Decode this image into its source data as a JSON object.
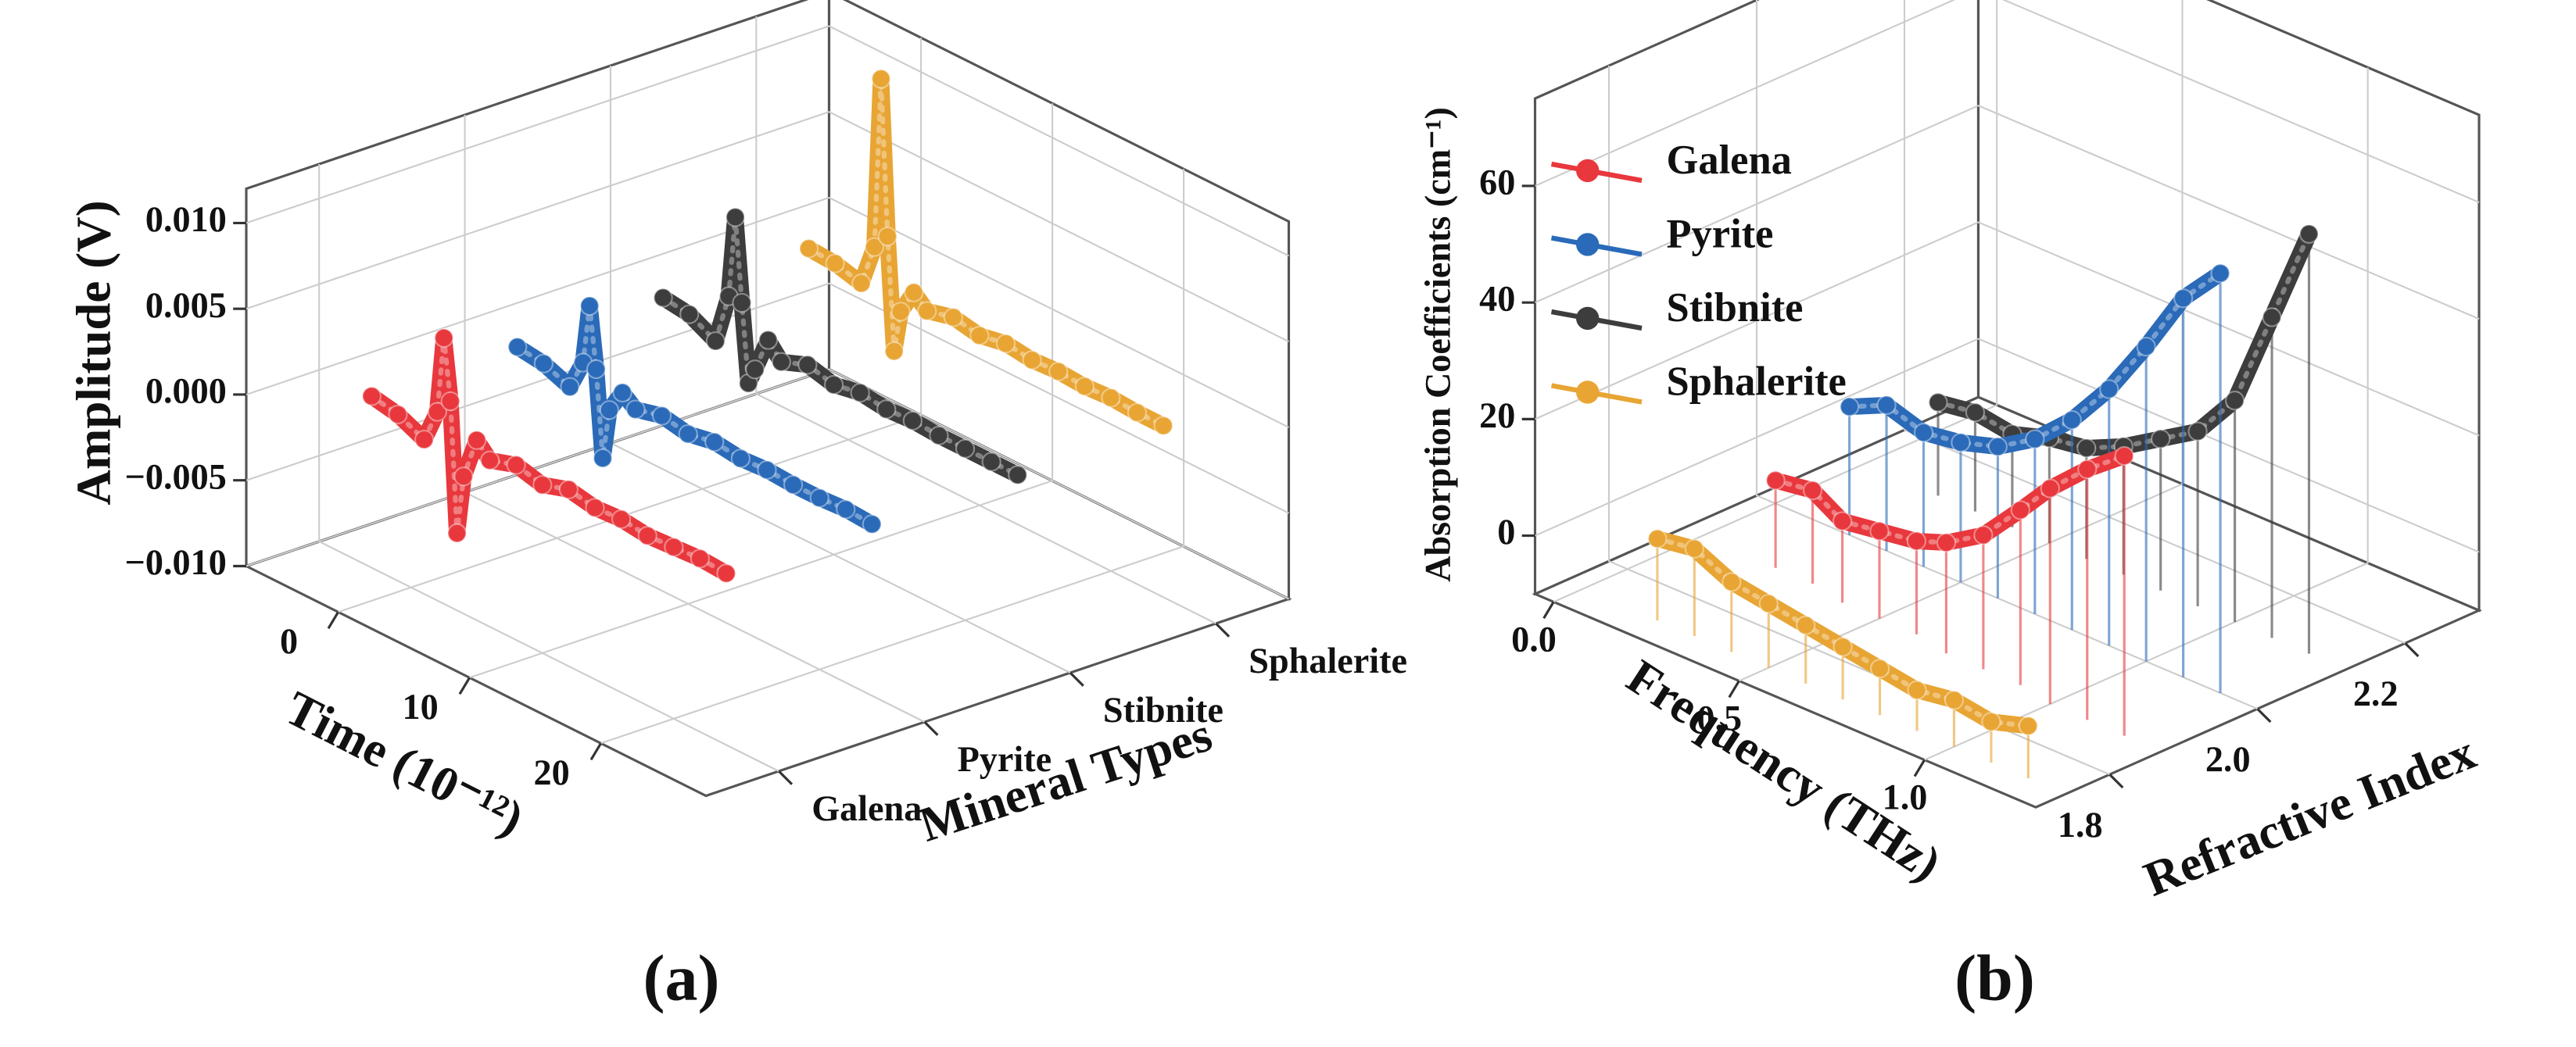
{
  "chart_data": [
    {
      "type": "line3d",
      "panel_label": "(a)",
      "x_label": "Time (10⁻¹²)",
      "y_label": "Amplitude (V)",
      "z_label": "Mineral Types",
      "xlim": [
        -7,
        28
      ],
      "xticks": [
        0,
        10,
        20
      ],
      "ylim": [
        -0.01,
        0.012
      ],
      "yticks": [
        {
          "value": -0.01,
          "label": "−0.010"
        },
        {
          "value": -0.005,
          "label": "−0.005"
        },
        {
          "value": 0,
          "label": "0.000"
        },
        {
          "value": 0.005,
          "label": "0.005"
        },
        {
          "value": 0.01,
          "label": "0.010"
        }
      ],
      "categories": [
        "Galena",
        "Pyrite",
        "Stibnite",
        "Sphalerite"
      ],
      "x": [
        -3,
        -1,
        1,
        2,
        2.5,
        3,
        3.5,
        4,
        5,
        6,
        8,
        10,
        12,
        14,
        16,
        18,
        20,
        22,
        24
      ],
      "series": [
        {
          "color": "#e8383d",
          "values": [
            0,
            -0.0003,
            -0.001,
            0.001,
            0.0055,
            0.002,
            -0.0055,
            -0.002,
            0.0005,
            -0.0003,
            0.0002,
            -0.0002,
            0.0003,
            0,
            0.0001,
            -0.0001,
            0,
            0.0001,
            0
          ]
        },
        {
          "color": "#2a6ab8",
          "values": [
            0,
            -0.0002,
            -0.0008,
            0.001,
            0.0045,
            0.001,
            -0.004,
            -0.001,
            0.0004,
            -0.0002,
            0.0002,
            -0.0001,
            0.0002,
            0,
            0.0001,
            0,
            0,
            0.0001,
            0
          ]
        },
        {
          "color": "#3d3d3d",
          "values": [
            0,
            -0.0002,
            -0.001,
            0.002,
            0.0068,
            0.002,
            -0.0025,
            -0.0015,
            0.0006,
            -0.0003,
            0.0003,
            -0.0001,
            0.0002,
            0,
            0.0001,
            0,
            0,
            0,
            0
          ]
        },
        {
          "color": "#e8a534",
          "values": [
            0,
            -0.0001,
            -0.0005,
            0.002,
            0.012,
            0.003,
            -0.0035,
            -0.001,
            0.0005,
            -0.0002,
            0.0002,
            -0.0001,
            0.0002,
            0,
            0.0001,
            0,
            0.0001,
            0,
            0
          ]
        }
      ]
    },
    {
      "type": "line3d",
      "panel_label": "(b)",
      "x_label": "Frequency (THz)",
      "y_label": "Absorption Coefficients (cm⁻¹)",
      "z_label": "Refractive Index",
      "xlim": [
        -0.05,
        1.3
      ],
      "xticks": [
        {
          "value": 0,
          "label": "0.0"
        },
        0.5,
        {
          "value": 1,
          "label": "1.0"
        }
      ],
      "ylim": [
        -10,
        75
      ],
      "yticks": [
        0,
        20,
        40,
        60
      ],
      "zlim": [
        1.7,
        2.3
      ],
      "zticks": [
        1.8,
        {
          "value": 2,
          "label": "2.0"
        },
        2.2
      ],
      "x": [
        0.2,
        0.3,
        0.4,
        0.5,
        0.6,
        0.7,
        0.8,
        0.9,
        1.0,
        1.1,
        1.2
      ],
      "series": [
        {
          "name": "Galena",
          "color": "#e8383d",
          "refractive_index": [
            1.9,
            1.9,
            1.89,
            1.89,
            1.89,
            1.88,
            1.88,
            1.88,
            1.87,
            1.87,
            1.87
          ],
          "values": [
            5,
            6,
            4,
            5,
            6,
            9,
            13,
            20,
            27,
            33,
            38
          ]
        },
        {
          "name": "Pyrite",
          "color": "#2a6ab8",
          "refractive_index": [
            2.0,
            2.0,
            2.0,
            2.0,
            2.0,
            2.0,
            2.0,
            2.0,
            2.0,
            2.0,
            2.0
          ],
          "values": [
            12,
            15,
            13,
            14,
            16,
            20,
            26,
            34,
            44,
            55,
            62
          ]
        },
        {
          "name": "Stibnite",
          "color": "#3d3d3d",
          "refractive_index": [
            2.12,
            2.12,
            2.12,
            2.12,
            2.12,
            2.12,
            2.12,
            2.12,
            2.12,
            2.12,
            2.12
          ],
          "values": [
            6,
            7,
            6,
            8,
            9,
            12,
            16,
            20,
            28,
            45,
            62
          ]
        },
        {
          "name": "Sphalerite",
          "color": "#e8a534",
          "refractive_index": [
            1.74,
            1.74,
            1.74,
            1.74,
            1.74,
            1.74,
            1.74,
            1.74,
            1.74,
            1.74,
            1.74
          ],
          "values": [
            4,
            5,
            2,
            1,
            0,
            -1,
            -2,
            -3,
            -2,
            -3,
            -1
          ]
        }
      ]
    }
  ]
}
